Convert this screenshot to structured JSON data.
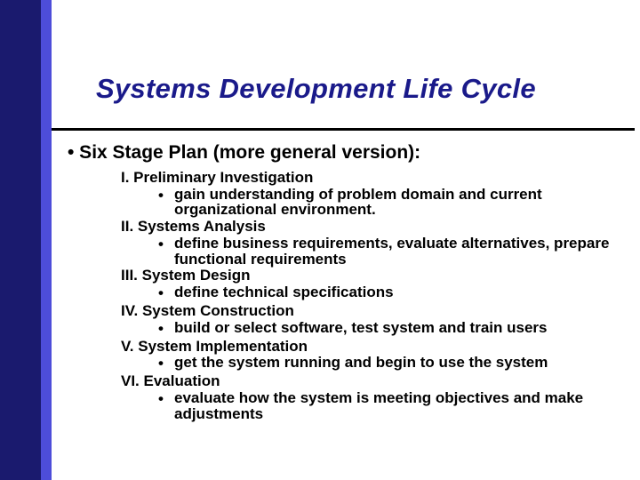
{
  "colors": {
    "sidebar_dark": "#1a1a6e",
    "sidebar_light": "#4d4dd9",
    "title_color": "#1a1a8a",
    "text_color": "#000000",
    "background": "#ffffff",
    "divider": "#000000"
  },
  "typography": {
    "title_fontsize": 31,
    "title_style": "bold italic",
    "body_fontsize": 17,
    "main_bullet_fontsize": 21
  },
  "title": "Systems Development Life Cycle",
  "main_bullet": "• Six Stage Plan (more general version):",
  "stages": [
    {
      "heading": "I. Preliminary Investigation",
      "sub": "gain understanding of problem domain and current organizational environment."
    },
    {
      "heading": "II. Systems Analysis",
      "sub": "define business requirements, evaluate alternatives, prepare functional requirements"
    },
    {
      "heading": "III. System Design",
      "sub": "define technical specifications"
    },
    {
      "heading": "IV. System Construction",
      "sub": "build or select software, test system and train users"
    },
    {
      "heading": "V. System Implementation",
      "sub": "get the system running and begin to use the system"
    },
    {
      "heading": "VI. Evaluation",
      "sub": "evaluate how the system is meeting objectives and make adjustments"
    }
  ]
}
